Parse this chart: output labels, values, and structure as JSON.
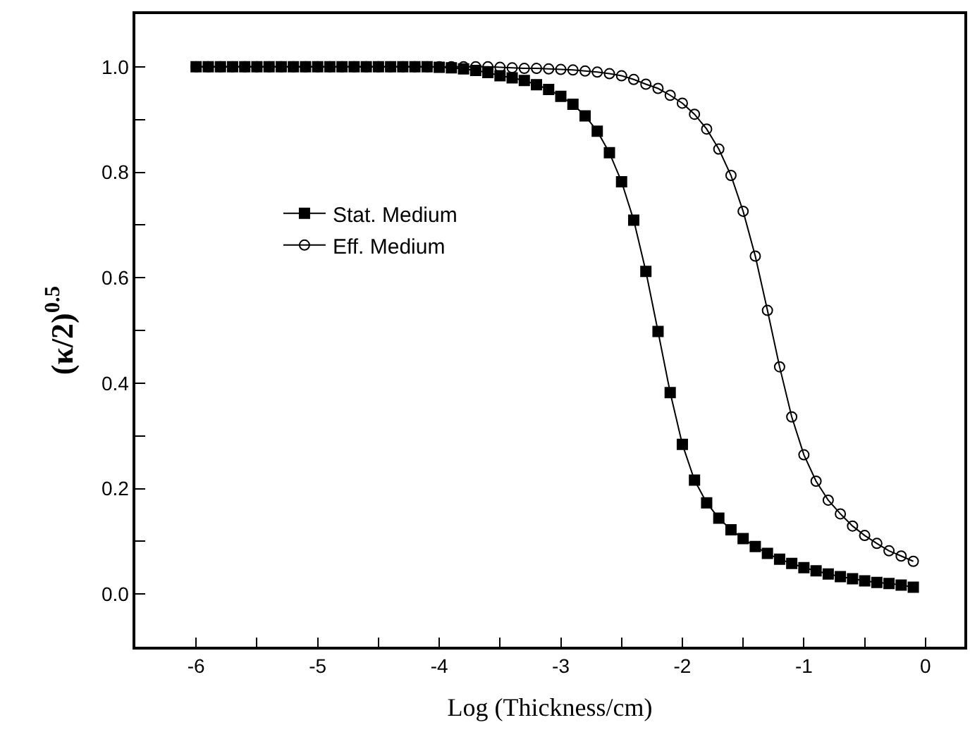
{
  "chart_data": {
    "type": "line",
    "xlabel": "Log (Thickness/cm)",
    "ylabel": "(κ/2)$^{0.5}$",
    "x": [
      -6.0,
      -5.9,
      -5.8,
      -5.7,
      -5.6,
      -5.5,
      -5.4,
      -5.3,
      -5.2,
      -5.1,
      -5.0,
      -4.9,
      -4.8,
      -4.7,
      -4.6,
      -4.5,
      -4.4,
      -4.3,
      -4.2,
      -4.1,
      -4.0,
      -3.9,
      -3.8,
      -3.7,
      -3.6,
      -3.5,
      -3.4,
      -3.3,
      -3.2,
      -3.1,
      -3.0,
      -2.9,
      -2.8,
      -2.7,
      -2.6,
      -2.5,
      -2.4,
      -2.3,
      -2.2,
      -2.1,
      -2.0,
      -1.9,
      -1.8,
      -1.7,
      -1.6,
      -1.5,
      -1.4,
      -1.3,
      -1.2,
      -1.1,
      -1.0,
      -0.9,
      -0.8,
      -0.7,
      -0.6,
      -0.5,
      -0.4,
      -0.3,
      -0.2,
      -0.1
    ],
    "series": [
      {
        "name": "Stat. Medium",
        "color": "#000000",
        "marker": "square",
        "values": [
          1.0,
          1.0,
          1.0,
          1.0,
          1.0,
          1.0,
          1.0,
          1.0,
          1.0,
          1.0,
          1.0,
          1.0,
          1.0,
          1.0,
          1.0,
          1.0,
          1.0,
          1.0,
          1.0,
          1.0,
          0.999,
          0.998,
          0.996,
          0.993,
          0.989,
          0.983,
          0.979,
          0.974,
          0.966,
          0.957,
          0.944,
          0.929,
          0.907,
          0.878,
          0.837,
          0.782,
          0.709,
          0.612,
          0.498,
          0.382,
          0.284,
          0.216,
          0.173,
          0.144,
          0.122,
          0.105,
          0.09,
          0.077,
          0.066,
          0.058,
          0.05,
          0.044,
          0.038,
          0.033,
          0.029,
          0.025,
          0.022,
          0.02,
          0.017,
          0.013
        ]
      },
      {
        "name": "Eff. Medium",
        "color": "#000000",
        "marker": "circle",
        "values": [
          1.0,
          1.0,
          1.0,
          1.0,
          1.0,
          1.0,
          1.0,
          1.0,
          1.0,
          1.0,
          1.0,
          1.0,
          1.0,
          1.0,
          1.0,
          1.0,
          1.0,
          1.0,
          1.0,
          1.0,
          1.0,
          1.0,
          1.0,
          1.0,
          1.0,
          0.999,
          0.998,
          0.997,
          0.997,
          0.996,
          0.995,
          0.994,
          0.992,
          0.99,
          0.987,
          0.983,
          0.976,
          0.967,
          0.959,
          0.946,
          0.931,
          0.91,
          0.882,
          0.844,
          0.794,
          0.726,
          0.641,
          0.538,
          0.431,
          0.336,
          0.264,
          0.214,
          0.178,
          0.152,
          0.129,
          0.111,
          0.096,
          0.082,
          0.072,
          0.062
        ]
      }
    ],
    "xlim": [
      -6.5,
      0.32
    ],
    "ylim": [
      -0.1,
      1.1
    ],
    "xticks": [
      -6,
      {
        "value": -5.5,
        "label": null
      },
      -5,
      {
        "value": -4.5,
        "label": null
      },
      -4,
      {
        "value": -3.5,
        "label": null
      },
      -3,
      {
        "value": -2.5,
        "label": null
      },
      -2,
      {
        "value": -1.5,
        "label": null
      },
      -1,
      {
        "value": -0.5,
        "label": null
      },
      0
    ],
    "yticks": [
      {
        "value": 0,
        "label": "0.0"
      },
      {
        "value": 0.1,
        "label": null
      },
      {
        "value": 0.2,
        "label": "0.2"
      },
      {
        "value": 0.3,
        "label": null
      },
      {
        "value": 0.4,
        "label": "0.4"
      },
      {
        "value": 0.5,
        "label": null
      },
      {
        "value": 0.6,
        "label": "0.6"
      },
      {
        "value": 0.7,
        "label": null
      },
      {
        "value": 0.8,
        "label": "0.8"
      },
      {
        "value": 0.9,
        "label": null
      },
      {
        "value": 1.0,
        "label": "1.0"
      }
    ],
    "grid": false,
    "legend": "center left",
    "line_style": "solid"
  }
}
